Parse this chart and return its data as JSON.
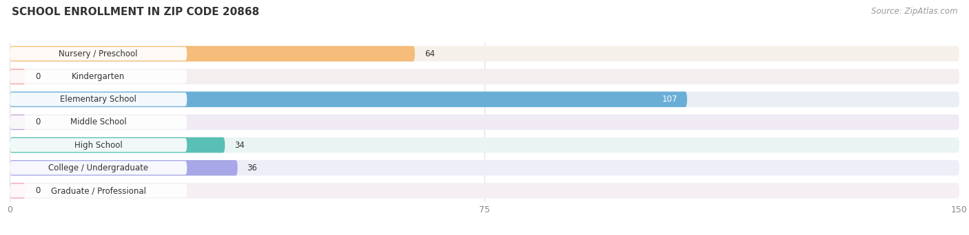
{
  "title": "SCHOOL ENROLLMENT IN ZIP CODE 20868",
  "source": "Source: ZipAtlas.com",
  "categories": [
    "Nursery / Preschool",
    "Kindergarten",
    "Elementary School",
    "Middle School",
    "High School",
    "College / Undergraduate",
    "Graduate / Professional"
  ],
  "values": [
    64,
    0,
    107,
    0,
    34,
    36,
    0
  ],
  "bar_colors": [
    "#f5bc7a",
    "#f0a0a0",
    "#6aaed6",
    "#c4a8d8",
    "#5abfb5",
    "#a8a8e8",
    "#f5a0bc"
  ],
  "bar_bg_colors": [
    "#f5f0ea",
    "#f5eeee",
    "#eaeff5",
    "#f0eaf5",
    "#eaf5f3",
    "#eeeef8",
    "#f5eef2"
  ],
  "xlim": [
    0,
    150
  ],
  "xticks": [
    0,
    75,
    150
  ],
  "title_fontsize": 11,
  "source_fontsize": 8.5,
  "bar_label_fontsize": 8.5,
  "category_fontsize": 8.5,
  "background_color": "#ffffff",
  "grid_color": "#dddddd",
  "text_color": "#333333",
  "source_color": "#999999"
}
